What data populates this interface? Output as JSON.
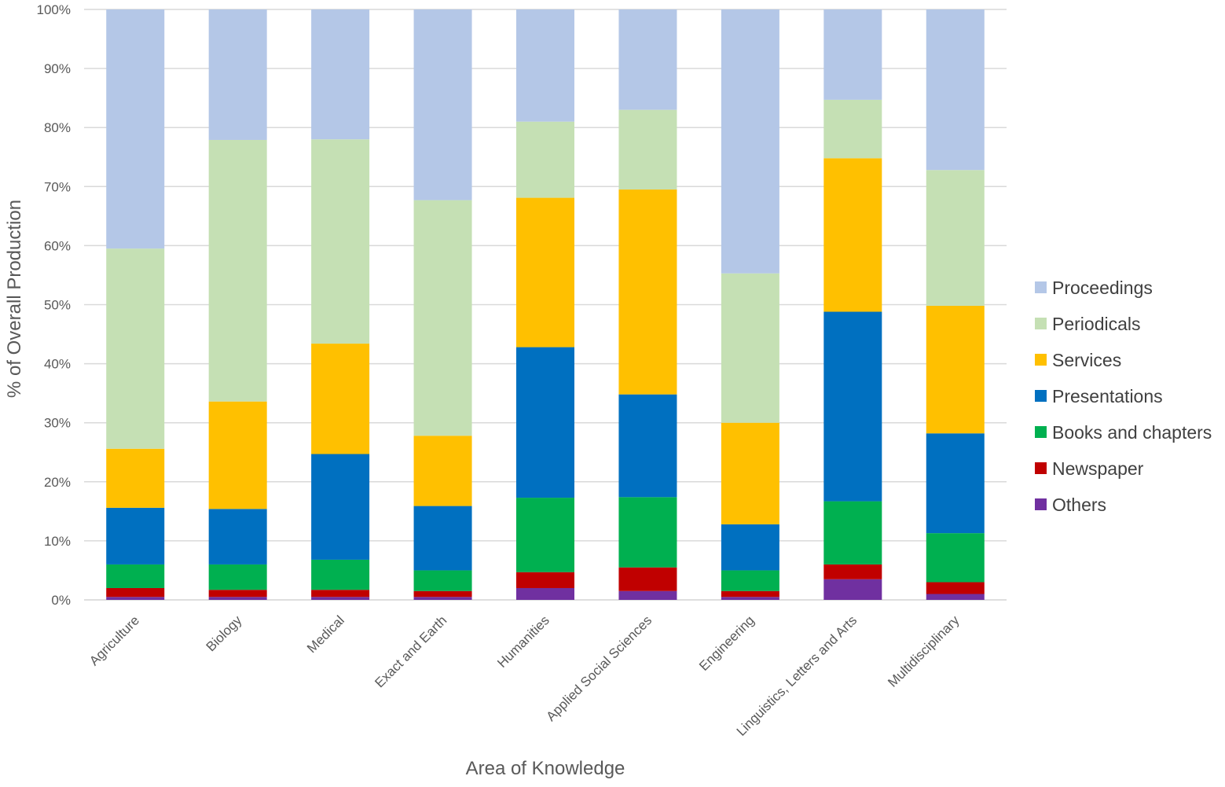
{
  "chart_data": {
    "type": "bar",
    "stacked": true,
    "title": "",
    "xlabel": "Area of Knowledge",
    "ylabel": "% of Overall Production",
    "ylim": [
      0,
      100
    ],
    "yticks": [
      0,
      10,
      20,
      30,
      40,
      50,
      60,
      70,
      80,
      90,
      100
    ],
    "ytick_labels": [
      "0%",
      "10%",
      "20%",
      "30%",
      "40%",
      "50%",
      "60%",
      "70%",
      "80%",
      "90%",
      "100%"
    ],
    "grid": true,
    "legend_position": "right",
    "categories": [
      "Agriculture",
      "Biology",
      "Medical",
      "Exact and Earth",
      "Humanities",
      "Applied Social Sciences",
      "Engineering",
      "Linguistics, Letters and Arts",
      "Multidisciplinary"
    ],
    "series": [
      {
        "name": "Others",
        "color": "#7030A0",
        "values": [
          0.5,
          0.5,
          0.5,
          0.5,
          2.0,
          1.5,
          0.5,
          3.5,
          1.0
        ]
      },
      {
        "name": "Newspaper",
        "color": "#C00000",
        "values": [
          1.5,
          1.2,
          1.2,
          1.0,
          2.7,
          4.0,
          1.0,
          2.5,
          2.0
        ]
      },
      {
        "name": "Books and chapters",
        "color": "#00B050",
        "values": [
          4.0,
          4.3,
          5.1,
          3.5,
          12.6,
          11.9,
          3.5,
          10.7,
          8.3
        ]
      },
      {
        "name": "Presentations",
        "color": "#0070C0",
        "values": [
          9.6,
          9.4,
          17.9,
          10.9,
          25.5,
          17.4,
          7.8,
          32.1,
          16.9
        ]
      },
      {
        "name": "Services",
        "color": "#FFC000",
        "values": [
          10.0,
          18.2,
          18.7,
          11.9,
          25.3,
          34.7,
          17.2,
          26.0,
          21.6
        ]
      },
      {
        "name": "Periodicals",
        "color": "#C5E0B4",
        "values": [
          33.9,
          44.3,
          34.6,
          39.9,
          12.9,
          13.5,
          25.3,
          9.9,
          23.0
        ]
      },
      {
        "name": "Proceedings",
        "color": "#B4C7E7",
        "values": [
          40.5,
          22.1,
          22.0,
          32.3,
          19.0,
          17.0,
          44.7,
          15.3,
          27.2
        ]
      }
    ],
    "legend_order": [
      "Proceedings",
      "Periodicals",
      "Services",
      "Presentations",
      "Books and chapters",
      "Newspaper",
      "Others"
    ]
  }
}
